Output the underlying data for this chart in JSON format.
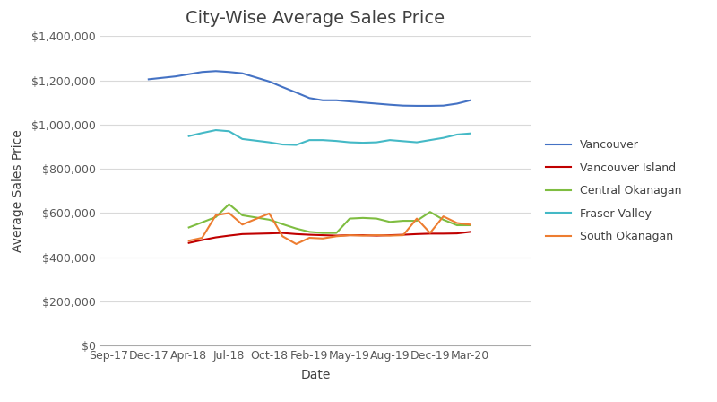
{
  "title": "City-Wise Average Sales Price",
  "xlabel": "Date",
  "ylabel": "Average Sales Price",
  "x_tick_labels": [
    "Sep-17",
    "Dec-17",
    "Apr-18",
    "Jul-18",
    "Oct-18",
    "Feb-19",
    "May-19",
    "Aug-19",
    "Dec-19",
    "Mar-20"
  ],
  "x_tick_pos": [
    0,
    1,
    2,
    3,
    4,
    5,
    6,
    7,
    8,
    9
  ],
  "series": [
    {
      "name": "Vancouver",
      "color": "#4472c4",
      "x": [
        1,
        1.67,
        2,
        2.33,
        2.67,
        3,
        3.33,
        4,
        4.33,
        4.67,
        5,
        5.33,
        5.67,
        6,
        6.33,
        6.67,
        7,
        7.33,
        7.67,
        8,
        8.33,
        8.67,
        9
      ],
      "y": [
        1205000,
        1218000,
        1228000,
        1238000,
        1242000,
        1238000,
        1232000,
        1195000,
        1170000,
        1145000,
        1120000,
        1110000,
        1110000,
        1105000,
        1100000,
        1095000,
        1090000,
        1086000,
        1085000,
        1085000,
        1086000,
        1095000,
        1110000
      ]
    },
    {
      "name": "Vancouver Island",
      "color": "#c00000",
      "x": [
        2,
        2.33,
        2.67,
        3,
        3.33,
        4,
        4.33,
        4.67,
        5,
        5.33,
        5.67,
        6,
        6.33,
        6.67,
        7,
        7.33,
        7.67,
        8,
        8.33,
        8.67,
        9
      ],
      "y": [
        465000,
        478000,
        490000,
        498000,
        505000,
        508000,
        510000,
        505000,
        502000,
        500000,
        498000,
        500000,
        500000,
        498000,
        500000,
        502000,
        505000,
        507000,
        507000,
        508000,
        515000
      ]
    },
    {
      "name": "Central Okanagan",
      "color": "#7fbd41",
      "x": [
        2,
        2.33,
        2.67,
        3,
        3.33,
        4,
        4.33,
        4.67,
        5,
        5.33,
        5.67,
        6,
        6.33,
        6.67,
        7,
        7.33,
        7.67,
        8,
        8.33,
        8.67,
        9
      ],
      "y": [
        535000,
        558000,
        582000,
        640000,
        590000,
        570000,
        550000,
        530000,
        515000,
        510000,
        510000,
        575000,
        578000,
        575000,
        560000,
        565000,
        565000,
        605000,
        570000,
        545000,
        545000
      ]
    },
    {
      "name": "Fraser Valley",
      "color": "#44b9c6",
      "x": [
        2,
        2.33,
        2.67,
        3,
        3.33,
        4,
        4.33,
        4.67,
        5,
        5.33,
        5.67,
        6,
        6.33,
        6.67,
        7,
        7.33,
        7.67,
        8,
        8.33,
        8.67,
        9
      ],
      "y": [
        948000,
        962000,
        975000,
        970000,
        935000,
        920000,
        910000,
        908000,
        930000,
        930000,
        926000,
        920000,
        918000,
        920000,
        930000,
        925000,
        920000,
        930000,
        940000,
        955000,
        960000
      ]
    },
    {
      "name": "South Okanagan",
      "color": "#ed7d31",
      "x": [
        2,
        2.33,
        2.67,
        3,
        3.33,
        4,
        4.33,
        4.67,
        5,
        5.33,
        5.67,
        6,
        6.33,
        6.67,
        7,
        7.33,
        7.67,
        8,
        8.33,
        8.67,
        9
      ],
      "y": [
        475000,
        488000,
        590000,
        600000,
        548000,
        598000,
        495000,
        460000,
        488000,
        485000,
        495000,
        500000,
        498000,
        500000,
        498000,
        500000,
        575000,
        510000,
        585000,
        555000,
        548000
      ]
    }
  ],
  "ylim": [
    0,
    1400000
  ],
  "yticks": [
    0,
    200000,
    400000,
    600000,
    800000,
    1000000,
    1200000,
    1400000
  ],
  "xlim": [
    -0.2,
    10.5
  ],
  "background_color": "#ffffff",
  "grid_color": "#d9d9d9",
  "title_fontsize": 14,
  "axis_label_fontsize": 10,
  "tick_fontsize": 9,
  "legend_fontsize": 9
}
